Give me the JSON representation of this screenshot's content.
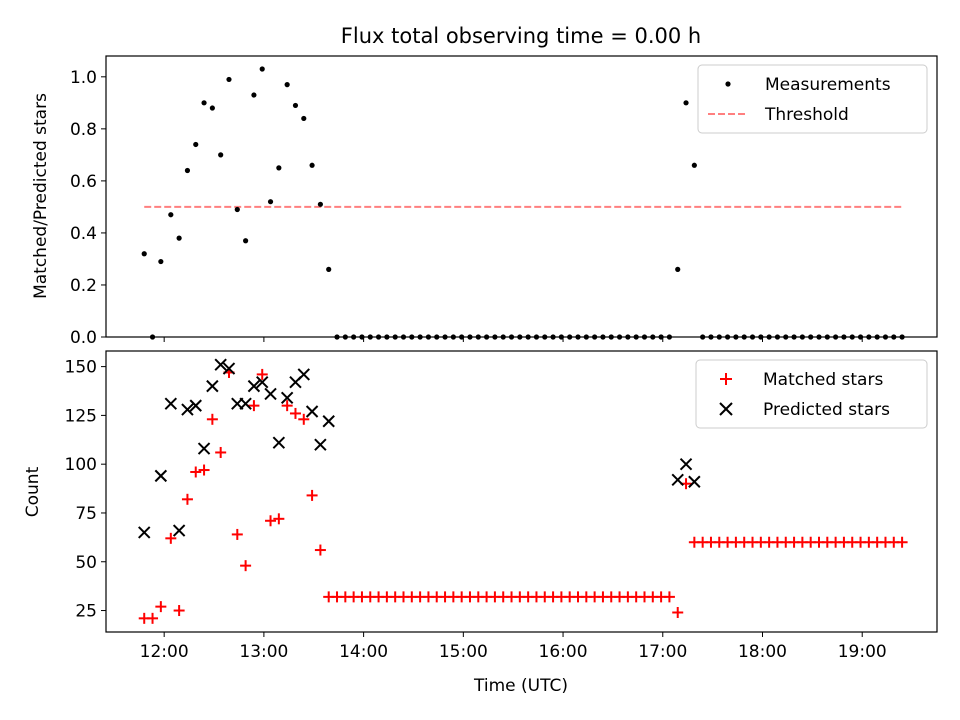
{
  "title": "Flux total observing time = 0.00 h",
  "xlabel": "Time (UTC)",
  "x_tick_labels": [
    "12:00",
    "13:00",
    "14:00",
    "15:00",
    "16:00",
    "17:00",
    "18:00",
    "19:00"
  ],
  "colors": {
    "measurements": "#000000",
    "threshold": "#ff7f7f",
    "matched": "#ff0000",
    "predicted": "#000000"
  },
  "chart_data": [
    {
      "type": "scatter",
      "panel": "top",
      "ylabel": "Matched/Predicted stars",
      "xlim": [
        "11:25",
        "19:45"
      ],
      "ylim": [
        0,
        1.08
      ],
      "y_ticks": [
        0.0,
        0.2,
        0.4,
        0.6,
        0.8,
        1.0
      ],
      "y_tick_labels": [
        "0.0",
        "0.2",
        "0.4",
        "0.6",
        "0.8",
        "1.0"
      ],
      "legend_position": "top-right",
      "series": [
        {
          "name": "Measurements",
          "type": "scatter",
          "points": [
            [
              "11:48",
              0.32
            ],
            [
              "11:53",
              0.0
            ],
            [
              "11:58",
              0.29
            ],
            [
              "12:04",
              0.47
            ],
            [
              "12:09",
              0.38
            ],
            [
              "12:14",
              0.64
            ],
            [
              "12:19",
              0.74
            ],
            [
              "12:24",
              0.9
            ],
            [
              "12:29",
              0.88
            ],
            [
              "12:34",
              0.7
            ],
            [
              "12:39",
              0.99
            ],
            [
              "12:44",
              0.49
            ],
            [
              "12:49",
              0.37
            ],
            [
              "12:54",
              0.93
            ],
            [
              "12:59",
              1.03
            ],
            [
              "13:04",
              0.52
            ],
            [
              "13:09",
              0.65
            ],
            [
              "13:14",
              0.97
            ],
            [
              "13:19",
              0.89
            ],
            [
              "13:24",
              0.84
            ],
            [
              "13:29",
              0.66
            ],
            [
              "13:34",
              0.51
            ],
            [
              "13:39",
              0.26
            ],
            [
              "13:44",
              0.0
            ],
            [
              "13:49",
              0.0
            ],
            [
              "13:54",
              0.0
            ],
            [
              "13:59",
              0.0
            ],
            [
              "14:04",
              0.0
            ],
            [
              "14:09",
              0.0
            ],
            [
              "14:14",
              0.0
            ],
            [
              "14:19",
              0.0
            ],
            [
              "14:24",
              0.0
            ],
            [
              "14:29",
              0.0
            ],
            [
              "14:34",
              0.0
            ],
            [
              "14:39",
              0.0
            ],
            [
              "14:44",
              0.0
            ],
            [
              "14:49",
              0.0
            ],
            [
              "14:54",
              0.0
            ],
            [
              "14:59",
              0.0
            ],
            [
              "15:04",
              0.0
            ],
            [
              "15:09",
              0.0
            ],
            [
              "15:14",
              0.0
            ],
            [
              "15:19",
              0.0
            ],
            [
              "15:24",
              0.0
            ],
            [
              "15:29",
              0.0
            ],
            [
              "15:34",
              0.0
            ],
            [
              "15:39",
              0.0
            ],
            [
              "15:44",
              0.0
            ],
            [
              "15:49",
              0.0
            ],
            [
              "15:54",
              0.0
            ],
            [
              "15:59",
              0.0
            ],
            [
              "16:04",
              0.0
            ],
            [
              "16:09",
              0.0
            ],
            [
              "16:14",
              0.0
            ],
            [
              "16:19",
              0.0
            ],
            [
              "16:24",
              0.0
            ],
            [
              "16:29",
              0.0
            ],
            [
              "16:34",
              0.0
            ],
            [
              "16:39",
              0.0
            ],
            [
              "16:44",
              0.0
            ],
            [
              "16:49",
              0.0
            ],
            [
              "16:54",
              0.0
            ],
            [
              "16:59",
              0.0
            ],
            [
              "17:04",
              0.0
            ],
            [
              "17:09",
              0.26
            ],
            [
              "17:14",
              0.9
            ],
            [
              "17:19",
              0.66
            ],
            [
              "17:24",
              0.0
            ],
            [
              "17:29",
              0.0
            ],
            [
              "17:34",
              0.0
            ],
            [
              "17:39",
              0.0
            ],
            [
              "17:44",
              0.0
            ],
            [
              "17:49",
              0.0
            ],
            [
              "17:54",
              0.0
            ],
            [
              "17:59",
              0.0
            ],
            [
              "18:04",
              0.0
            ],
            [
              "18:09",
              0.0
            ],
            [
              "18:14",
              0.0
            ],
            [
              "18:19",
              0.0
            ],
            [
              "18:24",
              0.0
            ],
            [
              "18:29",
              0.0
            ],
            [
              "18:34",
              0.0
            ],
            [
              "18:39",
              0.0
            ],
            [
              "18:44",
              0.0
            ],
            [
              "18:49",
              0.0
            ],
            [
              "18:54",
              0.0
            ],
            [
              "18:59",
              0.0
            ],
            [
              "19:04",
              0.0
            ],
            [
              "19:09",
              0.0
            ],
            [
              "19:14",
              0.0
            ],
            [
              "19:19",
              0.0
            ],
            [
              "19:24",
              0.0
            ]
          ]
        },
        {
          "name": "Threshold",
          "type": "line",
          "style": "dashed",
          "points": [
            [
              "11:48",
              0.5
            ],
            [
              "19:24",
              0.5
            ]
          ]
        }
      ]
    },
    {
      "type": "scatter",
      "panel": "bottom",
      "ylabel": "Count",
      "xlim": [
        "11:25",
        "19:45"
      ],
      "ylim": [
        14,
        158
      ],
      "y_ticks": [
        25,
        50,
        75,
        100,
        125,
        150
      ],
      "y_tick_labels": [
        "25",
        "50",
        "75",
        "100",
        "125",
        "150"
      ],
      "legend_position": "top-right",
      "series": [
        {
          "name": "Matched stars",
          "marker": "plus",
          "points": [
            [
              "11:48",
              21
            ],
            [
              "11:53",
              21
            ],
            [
              "11:58",
              27
            ],
            [
              "12:04",
              62
            ],
            [
              "12:09",
              25
            ],
            [
              "12:14",
              82
            ],
            [
              "12:19",
              96
            ],
            [
              "12:24",
              97
            ],
            [
              "12:29",
              123
            ],
            [
              "12:34",
              106
            ],
            [
              "12:39",
              147
            ],
            [
              "12:44",
              64
            ],
            [
              "12:49",
              48
            ],
            [
              "12:54",
              130
            ],
            [
              "12:59",
              146
            ],
            [
              "13:04",
              71
            ],
            [
              "13:09",
              72
            ],
            [
              "13:14",
              130
            ],
            [
              "13:19",
              126
            ],
            [
              "13:24",
              123
            ],
            [
              "13:29",
              84
            ],
            [
              "13:34",
              56
            ],
            [
              "13:39",
              32
            ],
            [
              "13:44",
              32
            ],
            [
              "13:49",
              32
            ],
            [
              "13:54",
              32
            ],
            [
              "13:59",
              32
            ],
            [
              "14:04",
              32
            ],
            [
              "14:09",
              32
            ],
            [
              "14:14",
              32
            ],
            [
              "14:19",
              32
            ],
            [
              "14:24",
              32
            ],
            [
              "14:29",
              32
            ],
            [
              "14:34",
              32
            ],
            [
              "14:39",
              32
            ],
            [
              "14:44",
              32
            ],
            [
              "14:49",
              32
            ],
            [
              "14:54",
              32
            ],
            [
              "14:59",
              32
            ],
            [
              "15:04",
              32
            ],
            [
              "15:09",
              32
            ],
            [
              "15:14",
              32
            ],
            [
              "15:19",
              32
            ],
            [
              "15:24",
              32
            ],
            [
              "15:29",
              32
            ],
            [
              "15:34",
              32
            ],
            [
              "15:39",
              32
            ],
            [
              "15:44",
              32
            ],
            [
              "15:49",
              32
            ],
            [
              "15:54",
              32
            ],
            [
              "15:59",
              32
            ],
            [
              "16:04",
              32
            ],
            [
              "16:09",
              32
            ],
            [
              "16:14",
              32
            ],
            [
              "16:19",
              32
            ],
            [
              "16:24",
              32
            ],
            [
              "16:29",
              32
            ],
            [
              "16:34",
              32
            ],
            [
              "16:39",
              32
            ],
            [
              "16:44",
              32
            ],
            [
              "16:49",
              32
            ],
            [
              "16:54",
              32
            ],
            [
              "16:59",
              32
            ],
            [
              "17:04",
              32
            ],
            [
              "17:09",
              24
            ],
            [
              "17:14",
              90
            ],
            [
              "17:19",
              60
            ],
            [
              "17:24",
              60
            ],
            [
              "17:29",
              60
            ],
            [
              "17:34",
              60
            ],
            [
              "17:39",
              60
            ],
            [
              "17:44",
              60
            ],
            [
              "17:49",
              60
            ],
            [
              "17:54",
              60
            ],
            [
              "17:59",
              60
            ],
            [
              "18:04",
              60
            ],
            [
              "18:09",
              60
            ],
            [
              "18:14",
              60
            ],
            [
              "18:19",
              60
            ],
            [
              "18:24",
              60
            ],
            [
              "18:29",
              60
            ],
            [
              "18:34",
              60
            ],
            [
              "18:39",
              60
            ],
            [
              "18:44",
              60
            ],
            [
              "18:49",
              60
            ],
            [
              "18:54",
              60
            ],
            [
              "18:59",
              60
            ],
            [
              "19:04",
              60
            ],
            [
              "19:09",
              60
            ],
            [
              "19:14",
              60
            ],
            [
              "19:19",
              60
            ],
            [
              "19:24",
              60
            ]
          ]
        },
        {
          "name": "Predicted stars",
          "marker": "x",
          "points": [
            [
              "11:48",
              65
            ],
            [
              "11:58",
              94
            ],
            [
              "12:04",
              131
            ],
            [
              "12:09",
              66
            ],
            [
              "12:14",
              128
            ],
            [
              "12:19",
              130
            ],
            [
              "12:24",
              108
            ],
            [
              "12:29",
              140
            ],
            [
              "12:34",
              151
            ],
            [
              "12:39",
              149
            ],
            [
              "12:44",
              131
            ],
            [
              "12:49",
              131
            ],
            [
              "12:54",
              140
            ],
            [
              "12:59",
              142
            ],
            [
              "13:04",
              136
            ],
            [
              "13:09",
              111
            ],
            [
              "13:14",
              134
            ],
            [
              "13:19",
              142
            ],
            [
              "13:24",
              146
            ],
            [
              "13:29",
              127
            ],
            [
              "13:34",
              110
            ],
            [
              "13:39",
              122
            ],
            [
              "17:09",
              92
            ],
            [
              "17:14",
              100
            ],
            [
              "17:19",
              91
            ]
          ]
        }
      ]
    }
  ]
}
